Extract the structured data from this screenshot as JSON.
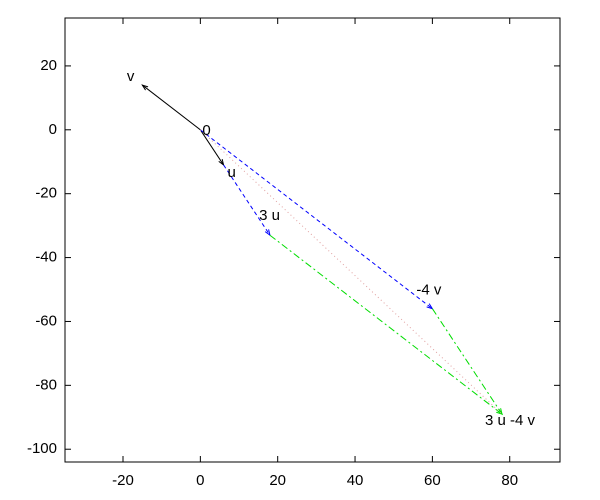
{
  "chart_data": {
    "type": "vector",
    "xlim": [
      -35,
      93
    ],
    "ylim": [
      -104,
      35
    ],
    "xticks": [
      -20,
      0,
      20,
      40,
      60,
      80
    ],
    "yticks": [
      20,
      0,
      -20,
      -40,
      -60,
      -80,
      -100
    ],
    "points": [
      {
        "label": "0",
        "x": 0,
        "y": 0
      },
      {
        "label": "v",
        "x": -15,
        "y": 14
      },
      {
        "label": "u",
        "x": 6,
        "y": -11
      },
      {
        "label": "3 u",
        "x": 18,
        "y": -33
      },
      {
        "label": "-4 v",
        "x": 60,
        "y": -56
      },
      {
        "label": "3 u -4 v",
        "x": 78,
        "y": -89
      }
    ],
    "segments": [
      {
        "color": "#000000",
        "style": "solid",
        "arrow": true,
        "x": [
          0,
          -15
        ],
        "y": [
          0,
          14
        ]
      },
      {
        "color": "#000000",
        "style": "solid",
        "arrow": true,
        "x": [
          0,
          6
        ],
        "y": [
          0,
          -11
        ]
      },
      {
        "color": "#0000ff",
        "style": "dashed",
        "arrow": true,
        "x": [
          0,
          60
        ],
        "y": [
          0,
          -56
        ]
      },
      {
        "color": "#0000ff",
        "style": "dashed",
        "arrow": true,
        "x": [
          6,
          18
        ],
        "y": [
          -11,
          -33
        ]
      },
      {
        "color": "#00dd00",
        "style": "dashdot",
        "arrow": true,
        "x": [
          18,
          78
        ],
        "y": [
          -33,
          -89
        ]
      },
      {
        "color": "#00dd00",
        "style": "dashdot",
        "arrow": true,
        "x": [
          60,
          78
        ],
        "y": [
          -56,
          -89
        ]
      },
      {
        "color": "#e0a0a0",
        "style": "dotted",
        "arrow": false,
        "x": [
          0,
          78
        ],
        "y": [
          0,
          -89
        ]
      }
    ]
  }
}
